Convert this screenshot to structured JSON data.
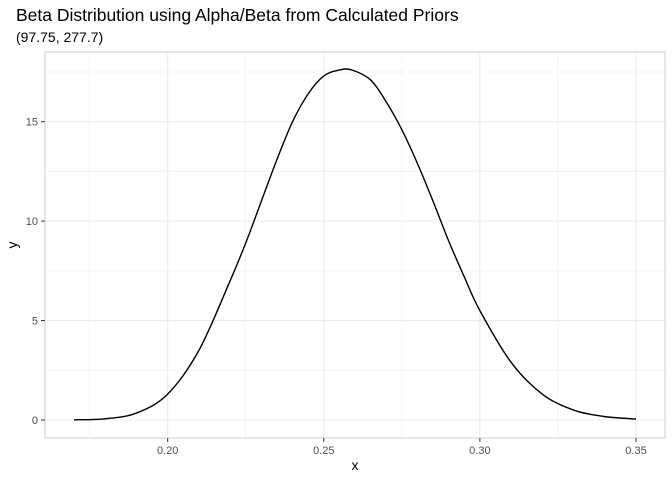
{
  "chart_data": {
    "type": "line",
    "title": "Beta Distribution using Alpha/Beta from Calculated Priors",
    "subtitle": "(97.75, 277.7)",
    "xlabel": "x",
    "ylabel": "y",
    "xlim": [
      0.17,
      0.35
    ],
    "ylim": [
      0,
      17.6
    ],
    "x_ticks": [
      0.2,
      0.25,
      0.3,
      0.35
    ],
    "x_tick_labels": [
      "0.20",
      "0.25",
      "0.30",
      "0.35"
    ],
    "y_ticks": [
      0,
      5,
      10,
      15
    ],
    "y_tick_labels": [
      "0",
      "5",
      "10",
      "15"
    ],
    "grid": true,
    "line_color": "#000000",
    "grid_color": "#ebebeb",
    "series": [
      {
        "x": [
          0.17,
          0.18,
          0.19,
          0.2,
          0.21,
          0.22,
          0.225,
          0.23,
          0.235,
          0.24,
          0.245,
          0.25,
          0.255,
          0.259,
          0.265,
          0.27,
          0.275,
          0.28,
          0.285,
          0.29,
          0.295,
          0.3,
          0.31,
          0.32,
          0.33,
          0.34,
          0.35
        ],
        "y": [
          0.01,
          0.06,
          0.35,
          1.3,
          3.5,
          7.0,
          8.9,
          11.0,
          13.1,
          15.0,
          16.4,
          17.3,
          17.6,
          17.6,
          17.1,
          16.0,
          14.6,
          12.9,
          11.0,
          9.0,
          7.2,
          5.5,
          2.9,
          1.3,
          0.5,
          0.17,
          0.05
        ]
      }
    ]
  }
}
